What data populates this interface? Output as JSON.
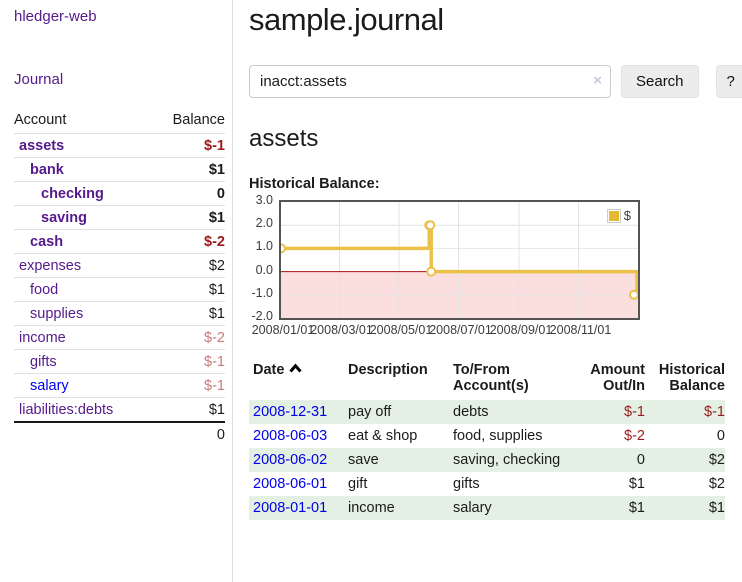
{
  "app": {
    "brand": "hledger-web",
    "nav_journal": "Journal"
  },
  "header": {
    "title": "sample.journal"
  },
  "search": {
    "value": "inacct:assets",
    "clear_icon": "×",
    "button": "Search",
    "help_button": "?"
  },
  "account_page": {
    "heading": "assets"
  },
  "sidebar": {
    "accounts_header": {
      "account": "Account",
      "balance": "Balance"
    },
    "accounts": [
      {
        "name": "assets",
        "indent": 0,
        "bold": true,
        "link": "visited",
        "balance": "$-1",
        "amount_class": "neg"
      },
      {
        "name": "bank",
        "indent": 1,
        "bold": true,
        "link": "visited",
        "balance": "$1",
        "amount_class": ""
      },
      {
        "name": "checking",
        "indent": 2,
        "bold": true,
        "link": "visited",
        "balance": "0",
        "amount_class": ""
      },
      {
        "name": "saving",
        "indent": 2,
        "bold": true,
        "link": "visited",
        "balance": "$1",
        "amount_class": ""
      },
      {
        "name": "cash",
        "indent": 1,
        "bold": true,
        "link": "visited",
        "balance": "$-2",
        "amount_class": "neg"
      },
      {
        "name": "expenses",
        "indent": 0,
        "bold": false,
        "link": "visited",
        "balance": "$2",
        "amount_class": ""
      },
      {
        "name": "food",
        "indent": 1,
        "bold": false,
        "link": "visited",
        "balance": "$1",
        "amount_class": ""
      },
      {
        "name": "supplies",
        "indent": 1,
        "bold": false,
        "link": "visited",
        "balance": "$1",
        "amount_class": ""
      },
      {
        "name": "income",
        "indent": 0,
        "bold": false,
        "link": "visited",
        "balance": "$-2",
        "amount_class": "neg-light"
      },
      {
        "name": "gifts",
        "indent": 1,
        "bold": false,
        "link": "visited",
        "balance": "$-1",
        "amount_class": "neg-light"
      },
      {
        "name": "salary",
        "indent": 1,
        "bold": false,
        "link": "unvisited",
        "balance": "$-1",
        "amount_class": "neg-light"
      },
      {
        "name": "liabilities:debts",
        "indent": 0,
        "bold": false,
        "link": "visited",
        "balance": "$1",
        "amount_class": ""
      }
    ],
    "total": "0"
  },
  "chart_data": {
    "type": "line",
    "step": true,
    "title": "Historical Balance:",
    "series": [
      {
        "name": "$",
        "color": "#ECC14A",
        "points": [
          {
            "date": "2008-01-01",
            "day": 0,
            "value": 1
          },
          {
            "date": "2008-06-01",
            "day": 152,
            "value": 2
          },
          {
            "date": "2008-06-02",
            "day": 153,
            "value": 2
          },
          {
            "date": "2008-06-03",
            "day": 154,
            "value": 0
          },
          {
            "date": "2008-12-31",
            "day": 365,
            "value": -1
          }
        ]
      }
    ],
    "ylim": [
      -2,
      3
    ],
    "yticks": [
      3.0,
      2.0,
      1.0,
      0.0,
      -1.0,
      -2.0
    ],
    "xlim_days": [
      0,
      366
    ],
    "xticks": [
      {
        "label": "2008/01/01",
        "day": 0
      },
      {
        "label": "2008/03/01",
        "day": 60
      },
      {
        "label": "2008/05/01",
        "day": 121
      },
      {
        "label": "2008/07/01",
        "day": 182
      },
      {
        "label": "2008/09/01",
        "day": 244
      },
      {
        "label": "2008/11/01",
        "day": 305
      }
    ],
    "legend": {
      "label": "$",
      "position": "top-right"
    },
    "grid": true,
    "negative_region_fill": "#FBDEDE",
    "zero_line_color": "#A51212"
  },
  "register": {
    "columns": [
      "Date",
      "Description",
      "To/From Account(s)",
      "Amount Out/In",
      "Historical Balance"
    ],
    "rows": [
      {
        "date": "2008-12-31",
        "description": "pay off",
        "accounts": "debts",
        "amount": "$-1",
        "amount_class": "neg",
        "balance": "$-1",
        "balance_class": "neg",
        "striped": true
      },
      {
        "date": "2008-06-03",
        "description": "eat & shop",
        "accounts": "food, supplies",
        "amount": "$-2",
        "amount_class": "neg",
        "balance": "0",
        "balance_class": "",
        "striped": false
      },
      {
        "date": "2008-06-02",
        "description": "save",
        "accounts": "saving, checking",
        "amount": "0",
        "amount_class": "",
        "balance": "$2",
        "balance_class": "",
        "striped": true
      },
      {
        "date": "2008-06-01",
        "description": "gift",
        "accounts": "gifts",
        "amount": "$1",
        "amount_class": "",
        "balance": "$2",
        "balance_class": "",
        "striped": false
      },
      {
        "date": "2008-01-01",
        "description": "income",
        "accounts": "salary",
        "amount": "$1",
        "amount_class": "",
        "balance": "$1",
        "balance_class": "",
        "striped": true
      }
    ]
  },
  "colors": {
    "link_visited": "#551A8B",
    "link_unvisited": "#0000EE",
    "negative": "#9A1B1B",
    "negative_muted": "#C47C7C",
    "row_stripe": "#E3F0E3",
    "chart_line": "#ECC14A",
    "chart_negative_fill": "#FBDEDE",
    "chart_zero_line": "#A51212"
  }
}
